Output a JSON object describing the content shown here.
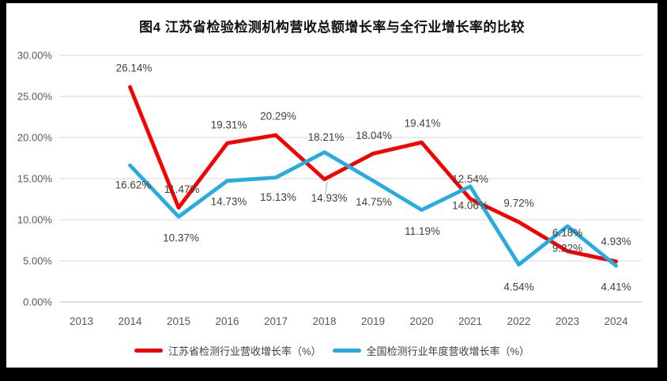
{
  "title": "图4 江苏省检验检测机构营收总额增长率与全行业增长率的比较",
  "colors": {
    "jiangsu_red": "#F70000",
    "national_blue": "#27ACE0",
    "grid_line": "#D9D9D9",
    "axis_line": "#BFBFBF",
    "data_label": "#404040",
    "tick_label": "#595959",
    "leader_line": "#A6A6A6",
    "frame": "#000000",
    "background": "#FFFFFF"
  },
  "chart_data": {
    "type": "line",
    "title": "图4 江苏省检验检测机构营收总额增长率与全行业增长率的比较",
    "x": [
      "2013",
      "2014",
      "2015",
      "2016",
      "2017",
      "2018",
      "2019",
      "2020",
      "2021",
      "2022",
      "2023",
      "2024"
    ],
    "series": [
      {
        "name": "江苏省检测行业营收增长率（%）",
        "color": "#F70000",
        "values": [
          null,
          26.14,
          11.47,
          19.31,
          20.29,
          14.93,
          18.04,
          19.41,
          12.54,
          9.72,
          6.18,
          4.93
        ]
      },
      {
        "name": "全国检测行业年度营收增长率（%）",
        "color": "#27ACE0",
        "values": [
          null,
          16.62,
          10.37,
          14.73,
          15.13,
          18.21,
          14.75,
          11.19,
          14.06,
          4.54,
          9.22,
          4.41
        ]
      }
    ],
    "xlabel": "",
    "ylabel": "",
    "ylim": [
      0,
      30
    ],
    "y_ticks": [
      "0.00%",
      "5.00%",
      "10.00%",
      "15.00%",
      "20.00%",
      "25.00%",
      "30.00%"
    ],
    "grid": true,
    "data_labels": true,
    "legend_position": "bottom"
  }
}
